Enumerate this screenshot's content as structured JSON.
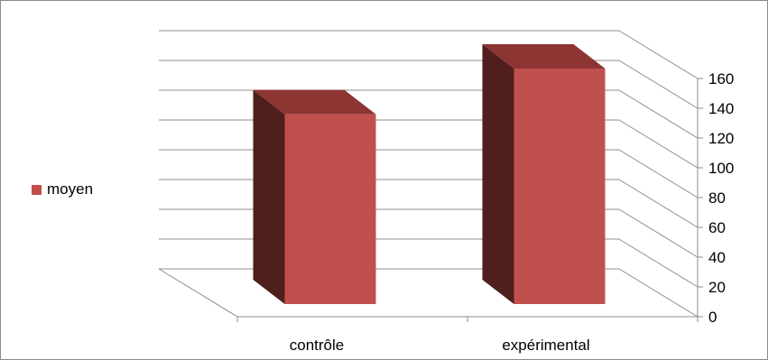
{
  "chart_data": {
    "type": "bar",
    "categories": [
      "contrôle",
      "expérimental"
    ],
    "series": [
      {
        "name": "moyen",
        "values": [
          137,
          170
        ],
        "color": "#c0504d"
      }
    ],
    "xlabel": "",
    "ylabel": "",
    "ylim": [
      0,
      160
    ],
    "yticks": [
      "0",
      "20",
      "40",
      "60",
      "80",
      "100",
      "120",
      "140",
      "160"
    ],
    "grid": true,
    "legend_position": "left",
    "style": "3d-column"
  },
  "legend": {
    "label": "moyen"
  }
}
